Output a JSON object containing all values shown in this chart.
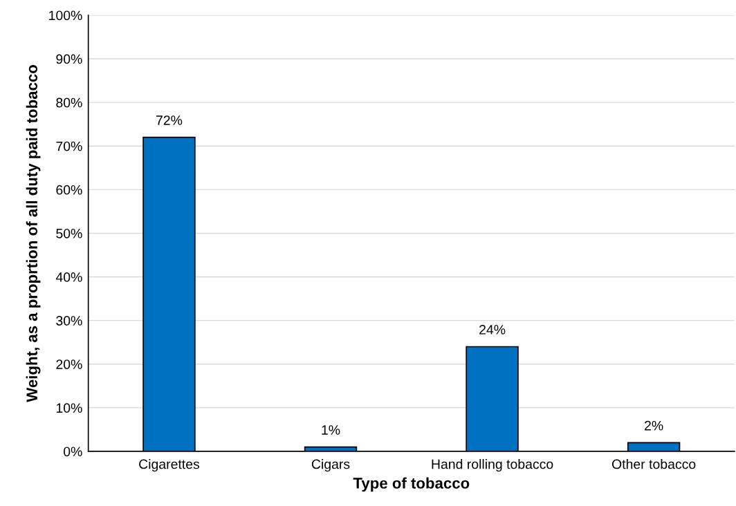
{
  "chart_data": {
    "type": "bar",
    "xlabel": "Type of tobacco",
    "ylabel": "Weight, as a proprtion of all duty paid tobacco",
    "categories": [
      "Cigarettes",
      "Cigars",
      "Hand rolling tobacco",
      "Other tobacco"
    ],
    "values": [
      72,
      1,
      24,
      2
    ],
    "value_labels": [
      "72%",
      "1%",
      "24%",
      "2%"
    ],
    "color": "#0070c0",
    "ylim": [
      0,
      100
    ],
    "yticks": [
      {
        "value": 0,
        "label": "0%"
      },
      {
        "value": 10,
        "label": "10%"
      },
      {
        "value": 20,
        "label": "20%"
      },
      {
        "value": 30,
        "label": "30%"
      },
      {
        "value": 40,
        "label": "40%"
      },
      {
        "value": 50,
        "label": "50%"
      },
      {
        "value": 60,
        "label": "60%"
      },
      {
        "value": 70,
        "label": "70%"
      },
      {
        "value": 80,
        "label": "80%"
      },
      {
        "value": 90,
        "label": "90%"
      },
      {
        "value": 100,
        "label": "100%"
      }
    ],
    "grid": "y"
  }
}
